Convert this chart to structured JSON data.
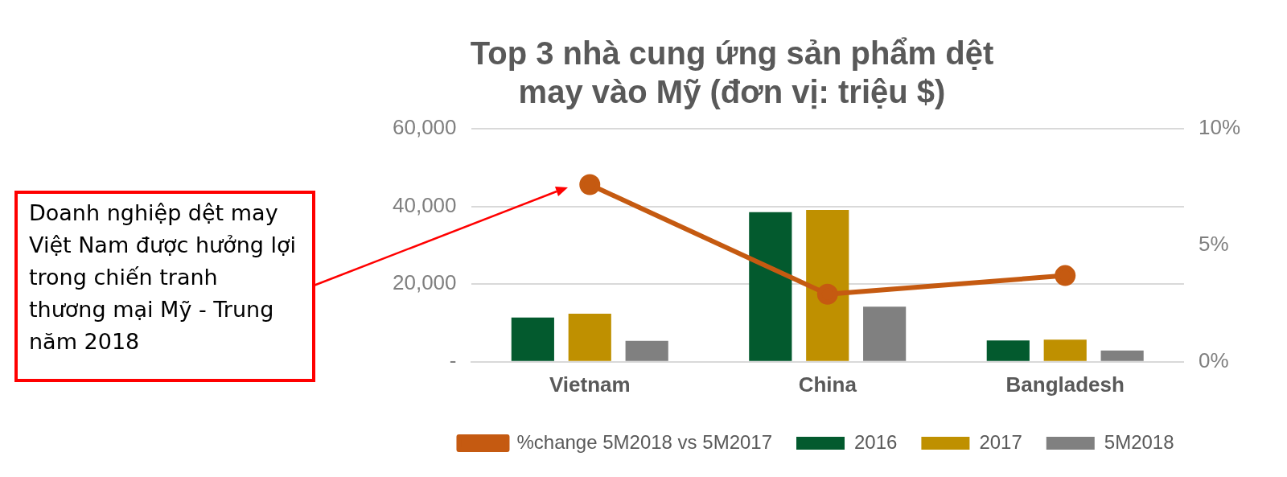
{
  "chart_data": {
    "type": "bar",
    "title": "Top 3 nhà cung ứng sản phẩm dệt may vào Mỹ (đơn vị: triệu $)",
    "categories": [
      "Vietnam",
      "China",
      "Bangladesh"
    ],
    "series": [
      {
        "name": "2016",
        "color": "#035a2e",
        "values": [
          11400,
          38500,
          5500
        ]
      },
      {
        "name": "2017",
        "color": "#bf9000",
        "values": [
          12400,
          39100,
          5700
        ]
      },
      {
        "name": "5M2018",
        "color": "#808080",
        "values": [
          5400,
          14200,
          2900
        ]
      },
      {
        "name": "%change 5M2018 vs 5M2017",
        "type": "line",
        "axis": "y2",
        "color": "#c55a11",
        "values": [
          7.6,
          2.9,
          3.7
        ]
      }
    ],
    "ylim": [
      0,
      60000
    ],
    "yticks": [
      {
        "value": 0,
        "label": "-"
      },
      {
        "value": 20000,
        "label": "20,000"
      },
      {
        "value": 40000,
        "label": "40,000"
      },
      {
        "value": 60000,
        "label": "60,000"
      }
    ],
    "y2lim": [
      0,
      10
    ],
    "y2ticks": [
      {
        "value": 0,
        "label": "0%"
      },
      {
        "value": 5,
        "label": "5%"
      },
      {
        "value": 10,
        "label": "10%"
      }
    ],
    "grid": "y",
    "legend": "bottom",
    "marker": "circle",
    "annotations": [
      "Doanh nghiệp dệt may Việt Nam được hưởng lợi trong chiến tranh thương mại Mỹ - Trung năm 2018"
    ]
  }
}
